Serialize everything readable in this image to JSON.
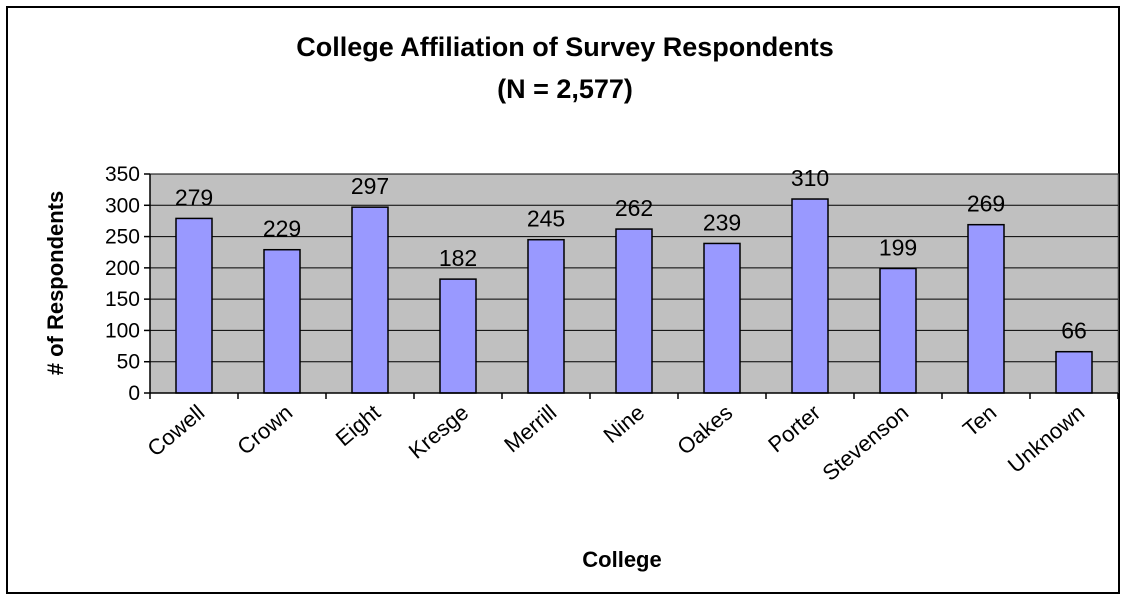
{
  "chart_data": {
    "type": "bar",
    "title": "College Affiliation of Survey Respondents",
    "subtitle": "(N = 2,577)",
    "xlabel": "College",
    "ylabel": "# of Respondents",
    "categories": [
      "Cowell",
      "Crown",
      "Eight",
      "Kresge",
      "Merrill",
      "Nine",
      "Oakes",
      "Porter",
      "Stevenson",
      "Ten",
      "Unknown"
    ],
    "values": [
      279,
      229,
      297,
      182,
      245,
      262,
      239,
      310,
      199,
      269,
      66
    ],
    "ylim": [
      0,
      350
    ],
    "yticks": [
      0,
      50,
      100,
      150,
      200,
      250,
      300,
      350
    ],
    "grid": true,
    "legend": "none",
    "colors": {
      "bar_fill": "#9999ff",
      "bar_stroke": "#000000",
      "plot_background": "#c0c0c0",
      "gridline": "#000000"
    }
  }
}
